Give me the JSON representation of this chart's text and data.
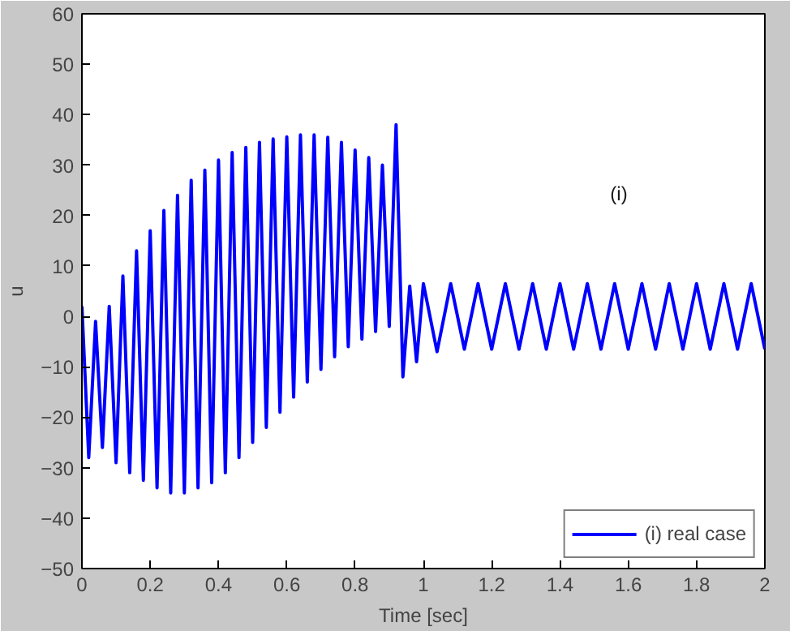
{
  "chart_data": {
    "type": "line",
    "xlabel": "Time [sec]",
    "ylabel": "u",
    "xlim": [
      0,
      2
    ],
    "ylim": [
      -50,
      60
    ],
    "xticks": [
      0,
      0.2,
      0.4,
      0.6,
      0.8,
      1,
      1.2,
      1.4,
      1.6,
      1.8,
      2
    ],
    "yticks": [
      -50,
      -40,
      -30,
      -20,
      -10,
      0,
      10,
      20,
      30,
      40,
      50,
      60
    ],
    "grid": false,
    "legend": "bottom right",
    "line_style": "solid",
    "annotations": [
      "(i)"
    ],
    "x": [
      0,
      0.02,
      0.04,
      0.06,
      0.08,
      0.1,
      0.12,
      0.14,
      0.16,
      0.18,
      0.2,
      0.22,
      0.24,
      0.26,
      0.28,
      0.3,
      0.32,
      0.34,
      0.36,
      0.38,
      0.4,
      0.42,
      0.44,
      0.46,
      0.48,
      0.5,
      0.52,
      0.54,
      0.56,
      0.58,
      0.6,
      0.62,
      0.64,
      0.66,
      0.68,
      0.7,
      0.72,
      0.74,
      0.76,
      0.78,
      0.8,
      0.82,
      0.84,
      0.86,
      0.88,
      0.9,
      0.92,
      0.94,
      0.96,
      0.98,
      1.0,
      1.04,
      1.08,
      1.12,
      1.16,
      1.2,
      1.24,
      1.28,
      1.32,
      1.36,
      1.4,
      1.44,
      1.48,
      1.52,
      1.56,
      1.6,
      1.64,
      1.68,
      1.72,
      1.76,
      1.8,
      1.84,
      1.88,
      1.92,
      1.96,
      2.0
    ],
    "series": [
      {
        "name": "(i) real case",
        "color": "#0000ff",
        "values": [
          2,
          -28,
          -1,
          -26,
          2,
          -29,
          8,
          -31,
          13,
          -32.5,
          17,
          -34,
          21,
          -35,
          24,
          -35,
          27,
          -34,
          29,
          -33,
          31,
          -31,
          32.5,
          -28,
          33.5,
          -25,
          34.5,
          -22,
          35.2,
          -19,
          35.6,
          -16,
          36,
          -13,
          36,
          -10.5,
          35.5,
          -8,
          34.5,
          -6,
          33,
          -4.5,
          31.5,
          -3,
          30,
          -2,
          38,
          -12,
          6,
          -9,
          6.5,
          -7,
          6.5,
          -6.5,
          6.5,
          -6.5,
          6.5,
          -6.5,
          6.5,
          -6.5,
          6.5,
          -6.5,
          6.5,
          -6.5,
          6.5,
          -6.5,
          6.5,
          -6.5,
          6.5,
          -6.5,
          6.5,
          -6.5,
          6.5,
          -6.5,
          6.5,
          -6.5
        ]
      }
    ]
  }
}
